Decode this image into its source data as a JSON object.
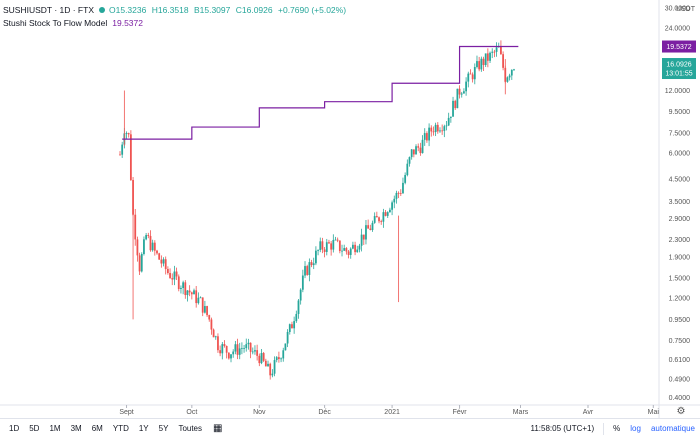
{
  "header": {
    "symbol": "SUSHIUSDT · 1D · FTX",
    "ohlc": {
      "o": "O15.3236",
      "h": "H16.3518",
      "l": "B15.3097",
      "c": "C16.0926",
      "chg": "+0.7690 (+5.02%)"
    },
    "indicator_name": "Stushi Stock To Flow Model",
    "indicator_value": "19.5372"
  },
  "price_axis": {
    "currency": "USDT",
    "ticks": [
      "30.0000",
      "24.0000",
      "19.5372",
      "16.0926",
      "12.0000",
      "9.5000",
      "7.5000",
      "6.0000",
      "4.5000",
      "3.5000",
      "2.9000",
      "2.3000",
      "1.9000",
      "1.5000",
      "1.2000",
      "0.9500",
      "0.7500",
      "0.6100",
      "0.4900",
      "0.4000"
    ],
    "countdown": "13:01:55"
  },
  "time_axis": {
    "labels": [
      "Sept",
      "Oct",
      "Nov",
      "Déc",
      "2021",
      "Févr",
      "Mars",
      "Avr",
      "Mai"
    ]
  },
  "bottom": {
    "timeframes": [
      "1D",
      "5D",
      "1M",
      "3M",
      "6M",
      "YTD",
      "1Y",
      "5Y",
      "Toutes"
    ],
    "clock": "11:58:05 (UTC+1)",
    "percent": "%",
    "log": "log",
    "auto": "automatique"
  },
  "colors": {
    "up": "#26a69a",
    "down": "#ef5350",
    "s2f": "#7b1fa2",
    "last": "#26a69a"
  },
  "chart_data": {
    "type": "candlestick",
    "title": "SUSHIUSDT · 1D · FTX",
    "scale": "log",
    "ylim": [
      0.38,
      32
    ],
    "x_range": [
      "2020-08-29",
      "2021-05-05"
    ],
    "x_labels": [
      "Sept",
      "Oct",
      "Nov",
      "Déc",
      "2021",
      "Févr",
      "Mars",
      "Avr",
      "Mai"
    ],
    "close_path": [
      [
        "2020-08-29",
        5.9
      ],
      [
        "2020-08-31",
        8.0
      ],
      [
        "2020-09-02",
        7.2
      ],
      [
        "2020-09-04",
        3.0
      ],
      [
        "2020-09-07",
        1.7
      ],
      [
        "2020-09-10",
        2.4
      ],
      [
        "2020-09-14",
        2.0
      ],
      [
        "2020-09-20",
        1.6
      ],
      [
        "2020-09-28",
        1.35
      ],
      [
        "2020-10-05",
        1.15
      ],
      [
        "2020-10-09",
        0.95
      ],
      [
        "2020-10-13",
        0.72
      ],
      [
        "2020-10-18",
        0.66
      ],
      [
        "2020-10-25",
        0.7
      ],
      [
        "2020-11-01",
        0.63
      ],
      [
        "2020-11-06",
        0.52
      ],
      [
        "2020-11-10",
        0.62
      ],
      [
        "2020-11-16",
        0.9
      ],
      [
        "2020-11-22",
        1.6
      ],
      [
        "2020-11-29",
        2.1
      ],
      [
        "2020-12-05",
        2.2
      ],
      [
        "2020-12-12",
        2.0
      ],
      [
        "2020-12-20",
        2.5
      ],
      [
        "2020-12-28",
        3.1
      ],
      [
        "2021-01-05",
        4.0
      ],
      [
        "2021-01-10",
        6.0
      ],
      [
        "2021-01-14",
        6.5
      ],
      [
        "2021-01-20",
        8.0
      ],
      [
        "2021-01-26",
        8.5
      ],
      [
        "2021-02-01",
        12.0
      ],
      [
        "2021-02-05",
        13.5
      ],
      [
        "2021-02-10",
        16.0
      ],
      [
        "2021-02-15",
        17.5
      ],
      [
        "2021-02-19",
        19.0
      ],
      [
        "2021-02-22",
        14.0
      ],
      [
        "2021-02-26",
        16.0
      ]
    ],
    "s2f_series": {
      "name": "Stushi Stock To Flow Model",
      "steps": [
        [
          "2020-08-30",
          7.0
        ],
        [
          "2020-10-01",
          8.0
        ],
        [
          "2020-11-01",
          9.9
        ],
        [
          "2020-12-01",
          10.6
        ],
        [
          "2021-01-01",
          13.0
        ],
        [
          "2021-02-01",
          19.5372
        ],
        [
          "2021-02-28",
          19.5372
        ]
      ]
    },
    "last_close": 16.0926,
    "s2f_last": 19.5372
  }
}
